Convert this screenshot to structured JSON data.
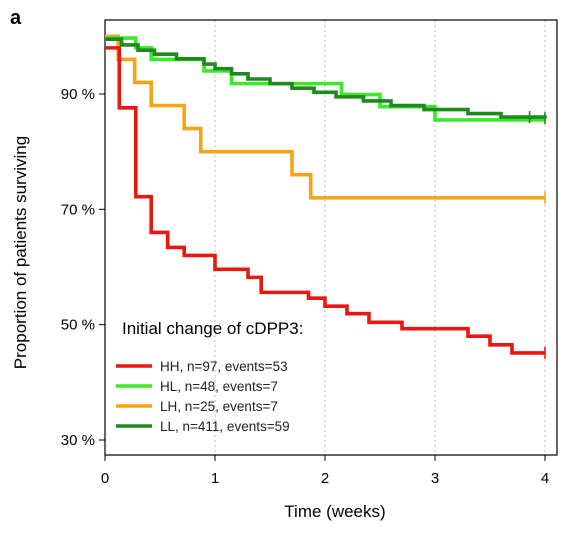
{
  "panel_label": "a",
  "chart_data": {
    "type": "line",
    "subtype": "kaplan-meier",
    "title": "",
    "xlabel": "Time (weeks)",
    "ylabel": "Proportion of patients surviving",
    "xlim": [
      0,
      4
    ],
    "ylim": [
      27,
      100
    ],
    "x_ticks": [
      0,
      1,
      2,
      3,
      4
    ],
    "x_tick_labels": [
      "0",
      "1",
      "2",
      "3",
      "4"
    ],
    "y_ticks": [
      30,
      50,
      70,
      90
    ],
    "y_tick_labels": [
      "30 %",
      "50 %",
      "70 %",
      "90 %"
    ],
    "grid": {
      "vertical": true,
      "horizontal": false
    },
    "legend": {
      "title": "Initial change of cDPP3:",
      "placement": "bottom-left"
    },
    "series": [
      {
        "name": "HH, n=97, events=53",
        "color": "#e8170f",
        "steps": [
          [
            0,
            98
          ],
          [
            0.13,
            87.6
          ],
          [
            0.28,
            72.2
          ],
          [
            0.42,
            66
          ],
          [
            0.57,
            63.4
          ],
          [
            0.72,
            62
          ],
          [
            1.0,
            59.6
          ],
          [
            1.3,
            58.2
          ],
          [
            1.42,
            55.6
          ],
          [
            1.85,
            54.6
          ],
          [
            2.0,
            53.2
          ],
          [
            2.2,
            51.9
          ],
          [
            2.4,
            50.4
          ],
          [
            2.7,
            49.3
          ],
          [
            3.3,
            48
          ],
          [
            3.5,
            46.5
          ],
          [
            3.7,
            45.1
          ],
          [
            4.0,
            45.1
          ]
        ],
        "censor": [
          4.0
        ]
      },
      {
        "name": "HL, n=48, events=7",
        "color": "#3ce82a",
        "steps": [
          [
            0,
            99.7
          ],
          [
            0.28,
            98
          ],
          [
            0.42,
            96
          ],
          [
            0.55,
            96
          ],
          [
            0.9,
            94
          ],
          [
            1.1,
            94
          ],
          [
            1.15,
            91.8
          ],
          [
            2.15,
            89.9
          ],
          [
            2.5,
            87.8
          ],
          [
            3.0,
            85.5
          ],
          [
            3.9,
            85.5
          ],
          [
            4.0,
            85.5
          ]
        ],
        "censor": []
      },
      {
        "name": "LH, n=25, events=7",
        "color": "#f5a418",
        "steps": [
          [
            0,
            100
          ],
          [
            0.12,
            96
          ],
          [
            0.27,
            92
          ],
          [
            0.42,
            88
          ],
          [
            0.72,
            84
          ],
          [
            0.87,
            80
          ],
          [
            1.7,
            76
          ],
          [
            1.87,
            72
          ],
          [
            4.0,
            72
          ]
        ],
        "censor": [
          4.0
        ]
      },
      {
        "name": "LL, n=411, events=59",
        "color": "#1e8a1e",
        "steps": [
          [
            0,
            99.5
          ],
          [
            0.15,
            98.5
          ],
          [
            0.3,
            97.6
          ],
          [
            0.45,
            96.9
          ],
          [
            0.65,
            96.1
          ],
          [
            0.9,
            95.2
          ],
          [
            1.0,
            94.4
          ],
          [
            1.15,
            93.5
          ],
          [
            1.3,
            92.6
          ],
          [
            1.5,
            91.8
          ],
          [
            1.7,
            91.0
          ],
          [
            1.9,
            90.3
          ],
          [
            2.1,
            89.5
          ],
          [
            2.35,
            88.8
          ],
          [
            2.6,
            88.0
          ],
          [
            2.9,
            87.3
          ],
          [
            3.3,
            86.6
          ],
          [
            3.6,
            86.0
          ],
          [
            4.0,
            85.8
          ]
        ],
        "censor": [
          3.86,
          4.0
        ]
      }
    ]
  }
}
